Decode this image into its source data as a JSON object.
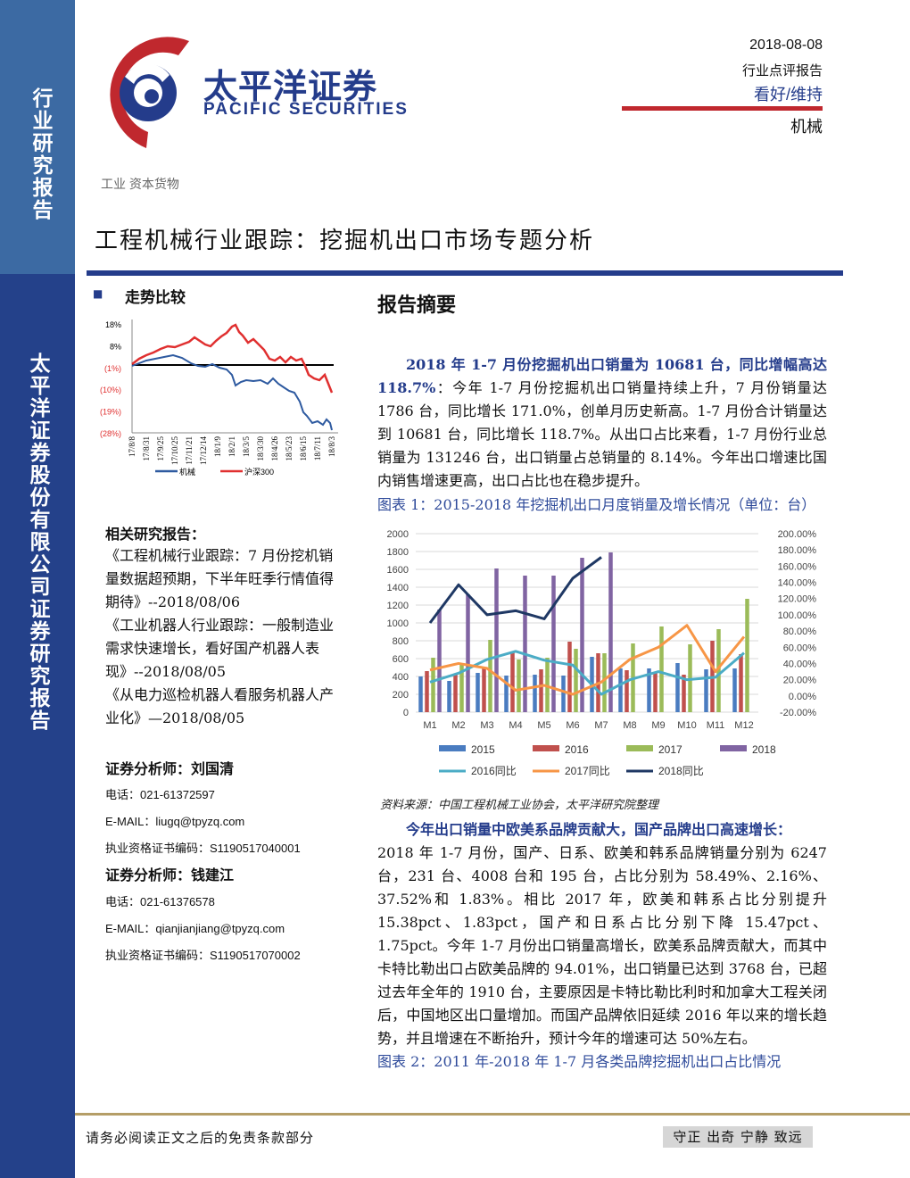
{
  "sidebar": {
    "label": "行业研究报告",
    "company": "太平洋证券股份有限公司证券研究报告"
  },
  "header": {
    "logo_cn": "太平洋证券",
    "logo_en": "PACIFIC SECURITIES",
    "date": "2018-08-08",
    "report_type": "行业点评报告",
    "rating": "看好/维持",
    "sector": "机械",
    "brand_color": "#243c8b",
    "accent_color": "#c0282e"
  },
  "sector_path": "工业  资本货物",
  "title": "工程机械行业跟踪：挖掘机出口市场专题分析",
  "trend": {
    "section_title": "走势比较",
    "chart": {
      "type": "line",
      "y_ticks": [
        "18%",
        "8%",
        "(1%)",
        "(10%)",
        "(19%)",
        "(28%)"
      ],
      "x_ticks": [
        "17/8/8",
        "17/8/31",
        "17/9/25",
        "17/10/25",
        "17/11/21",
        "17/12/14",
        "18/1/9",
        "18/2/1",
        "18/3/5",
        "18/3/30",
        "18/4/26",
        "18/5/23",
        "18/6/15",
        "18/7/11",
        "18/8/3"
      ],
      "legend": [
        "机械",
        "沪深300"
      ],
      "series_colors": [
        "#2e5aa0",
        "#e03030"
      ]
    }
  },
  "related": {
    "title": "相关研究报告：",
    "items": [
      "《工程机械行业跟踪：7 月份挖机销量数据超预期，下半年旺季行情值得期待》--2018/08/06",
      "《工业机器人行业跟踪：一般制造业需求快速增长，看好国产机器人表现》--2018/08/05",
      "《从电力巡检机器人看服务机器人产业化》—2018/08/05"
    ]
  },
  "analysts": [
    {
      "name": "证券分析师：刘国清",
      "phone": "电话：021-61372597",
      "email": "E-MAIL：liugq@tpyzq.com",
      "cert": "执业资格证书编码：S1190517040001"
    },
    {
      "name": "证券分析师：钱建江",
      "phone": "电话：021-61376578",
      "email": "E-MAIL：qianjianjiang@tpyzq.com",
      "cert": "执业资格证书编码：S1190517070002"
    }
  ],
  "summary": {
    "title": "报告摘要",
    "p1_highlight": "2018 年 1-7 月份挖掘机出口销量为 10681 台，同比增幅高达 118.7%",
    "p1_text": "：今年 1-7 月份挖掘机出口销量持续上升，7 月份销量达 1786 台，同比增长 171.0%，创单月历史新高。1-7 月份合计销量达到 10681 台，同比增长 118.7%。从出口占比来看，1-7 月份行业总销量为 131246 台，出口销量占总销量的 8.14%。今年出口增速比国内销售增速更高，出口占比也在稳步提升。",
    "fig1_caption": "图表 1：2015-2018 年挖掘机出口月度销量及增长情况（单位：台）",
    "fig1_source": "资料来源：中国工程机械工业协会，太平洋研究院整理",
    "p2_highlight": "今年出口销量中欧美系品牌贡献大，国产品牌出口高速增长：",
    "p2_text": "2018 年 1-7 月份，国产、日系、欧美和韩系品牌销量分别为 6247 台，231 台、4008 台和 195 台，占比分别为 58.49%、2.16%、37.52%和 1.83%。相比 2017 年，欧美和韩系占比分别提升 15.38pct、1.83pct，国产和日系占比分别下降 15.47pct、1.75pct。今年 1-7 月份出口销量高增长，欧美系品牌贡献大，而其中卡特比勒出口占欧美品牌的 94.01%，出口销量已达到 3768 台，已超过去年全年的 1910 台，主要原因是卡特比勒比利时和加拿大工程关闭后，中国地区出口量增加。而国产品牌依旧延续 2016 年以来的增长趋势，并且增速在不断抬升，预计今年的增速可达 50%左右。",
    "fig2_caption": "图表 2：2011 年-2018 年 1-7 月各类品牌挖掘机出口占比情况"
  },
  "chart_data": {
    "type": "bar",
    "categories": [
      "M1",
      "M2",
      "M3",
      "M4",
      "M5",
      "M6",
      "M7",
      "M8",
      "M9",
      "M10",
      "M11",
      "M12"
    ],
    "ylim": [
      0,
      2000
    ],
    "y2lim": [
      -0.2,
      2.0
    ],
    "y_ticks": [
      "0",
      "200",
      "400",
      "600",
      "800",
      "1000",
      "1200",
      "1400",
      "1600",
      "1800",
      "2000"
    ],
    "y2_ticks": [
      "-20.00%",
      "0.00%",
      "20.00%",
      "40.00%",
      "60.00%",
      "80.00%",
      "100.00%",
      "120.00%",
      "140.00%",
      "160.00%",
      "180.00%",
      "200.00%"
    ],
    "series": [
      {
        "name": "2015",
        "kind": "bar",
        "color": "#4a7cc0",
        "values": [
          400,
          350,
          440,
          410,
          420,
          410,
          620,
          490,
          490,
          550,
          480,
          490
        ]
      },
      {
        "name": "2016",
        "kind": "bar",
        "color": "#c0504d",
        "values": [
          460,
          420,
          490,
          680,
          480,
          790,
          660,
          470,
          440,
          420,
          800,
          650
        ]
      },
      {
        "name": "2017",
        "kind": "bar",
        "color": "#9bbb59",
        "values": [
          610,
          550,
          810,
          590,
          610,
          710,
          660,
          770,
          960,
          760,
          930,
          1270
        ]
      },
      {
        "name": "2018",
        "kind": "bar",
        "color": "#8064a2",
        "values": [
          1150,
          1320,
          1610,
          1530,
          1530,
          1730,
          1790,
          null,
          null,
          null,
          null,
          null
        ]
      },
      {
        "name": "2016同比",
        "kind": "line",
        "color": "#4bacc6",
        "values": [
          0.17,
          0.28,
          0.45,
          0.55,
          0.44,
          0.38,
          0.02,
          0.2,
          0.3,
          0.2,
          0.23,
          0.53
        ]
      },
      {
        "name": "2017同比",
        "kind": "line",
        "color": "#f79646",
        "values": [
          0.32,
          0.4,
          0.34,
          0.07,
          0.13,
          0.02,
          0.17,
          0.45,
          0.6,
          0.87,
          0.3,
          0.73
        ]
      },
      {
        "name": "2018同比",
        "kind": "line",
        "color": "#1f3864",
        "values": [
          0.9,
          1.37,
          1.0,
          1.05,
          0.95,
          1.45,
          1.71,
          null,
          null,
          null,
          null,
          null
        ]
      }
    ]
  },
  "footer": {
    "disclaimer": "请务必阅读正文之后的免责条款部分",
    "motto": "守正 出奇 宁静 致远"
  }
}
